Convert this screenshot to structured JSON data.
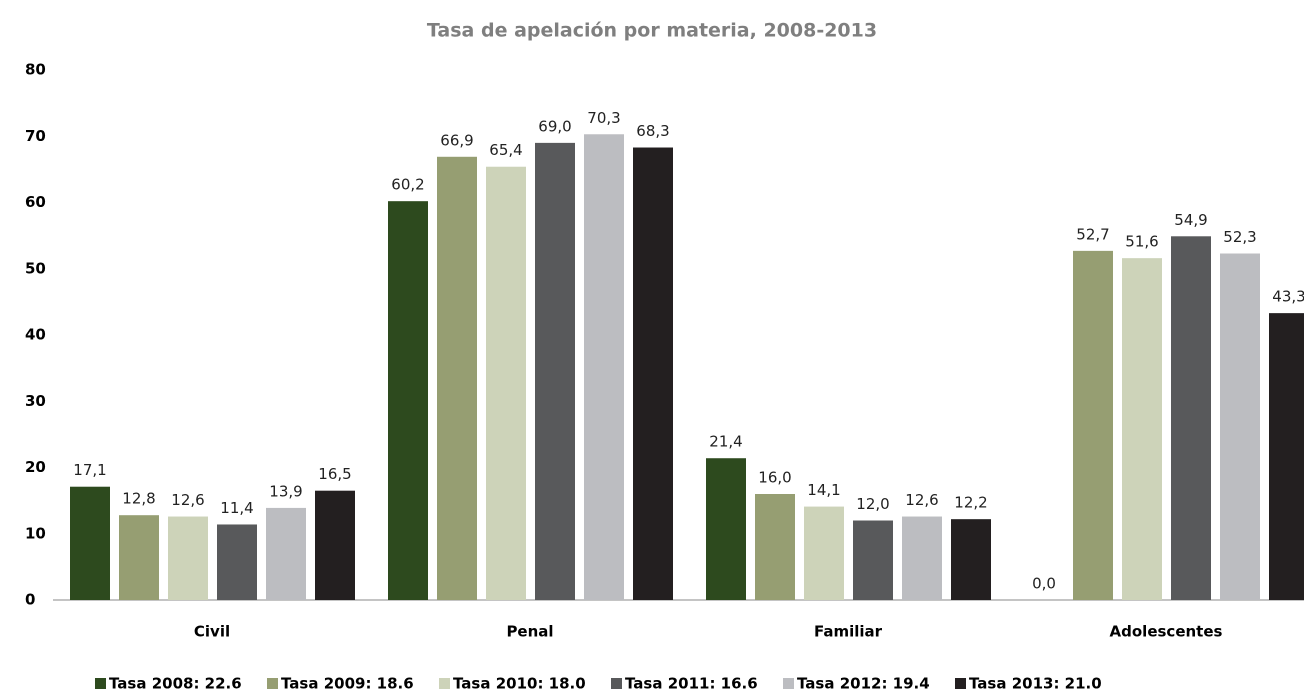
{
  "chart_data": {
    "type": "bar",
    "title": "Tasa de apelación por materia, 2008-2013",
    "categories": [
      "Civil",
      "Penal",
      "Familiar",
      "Adolescentes"
    ],
    "series": [
      {
        "name": "Tasa 2008: 22.6",
        "color": "#2d4a1e",
        "values": [
          17.1,
          60.2,
          21.4,
          0.0
        ],
        "value_labels": [
          "17,1",
          "60,2",
          "21,4",
          "0,0"
        ]
      },
      {
        "name": "Tasa 2009: 18.6",
        "color": "#969e72",
        "values": [
          12.8,
          66.9,
          16.0,
          52.7
        ],
        "value_labels": [
          "12,8",
          "66,9",
          "16,0",
          "52,7"
        ]
      },
      {
        "name": "Tasa 2010: 18.0",
        "color": "#cdd3b9",
        "values": [
          12.6,
          65.4,
          14.1,
          51.6
        ],
        "value_labels": [
          "12,6",
          "65,4",
          "14,1",
          "51,6"
        ]
      },
      {
        "name": "Tasa 2011: 16.6",
        "color": "#58595b",
        "values": [
          11.4,
          69.0,
          12.0,
          54.9
        ],
        "value_labels": [
          "11,4",
          "69,0",
          "12,0",
          "54,9"
        ]
      },
      {
        "name": "Tasa 2012: 19.4",
        "color": "#bcbdc1",
        "values": [
          13.9,
          70.3,
          12.6,
          52.3
        ],
        "value_labels": [
          "13,9",
          "70,3",
          "12,6",
          "52,3"
        ]
      },
      {
        "name": "Tasa 2013: 21.0",
        "color": "#231f20",
        "values": [
          16.5,
          68.3,
          12.2,
          43.3
        ],
        "value_labels": [
          "16,5",
          "68,3",
          "12,2",
          "43,3"
        ]
      }
    ],
    "ylim": [
      0,
      80
    ],
    "yticks": [
      0,
      10,
      20,
      30,
      40,
      50,
      60,
      70,
      80
    ],
    "grid": false,
    "legend": "bottom"
  }
}
